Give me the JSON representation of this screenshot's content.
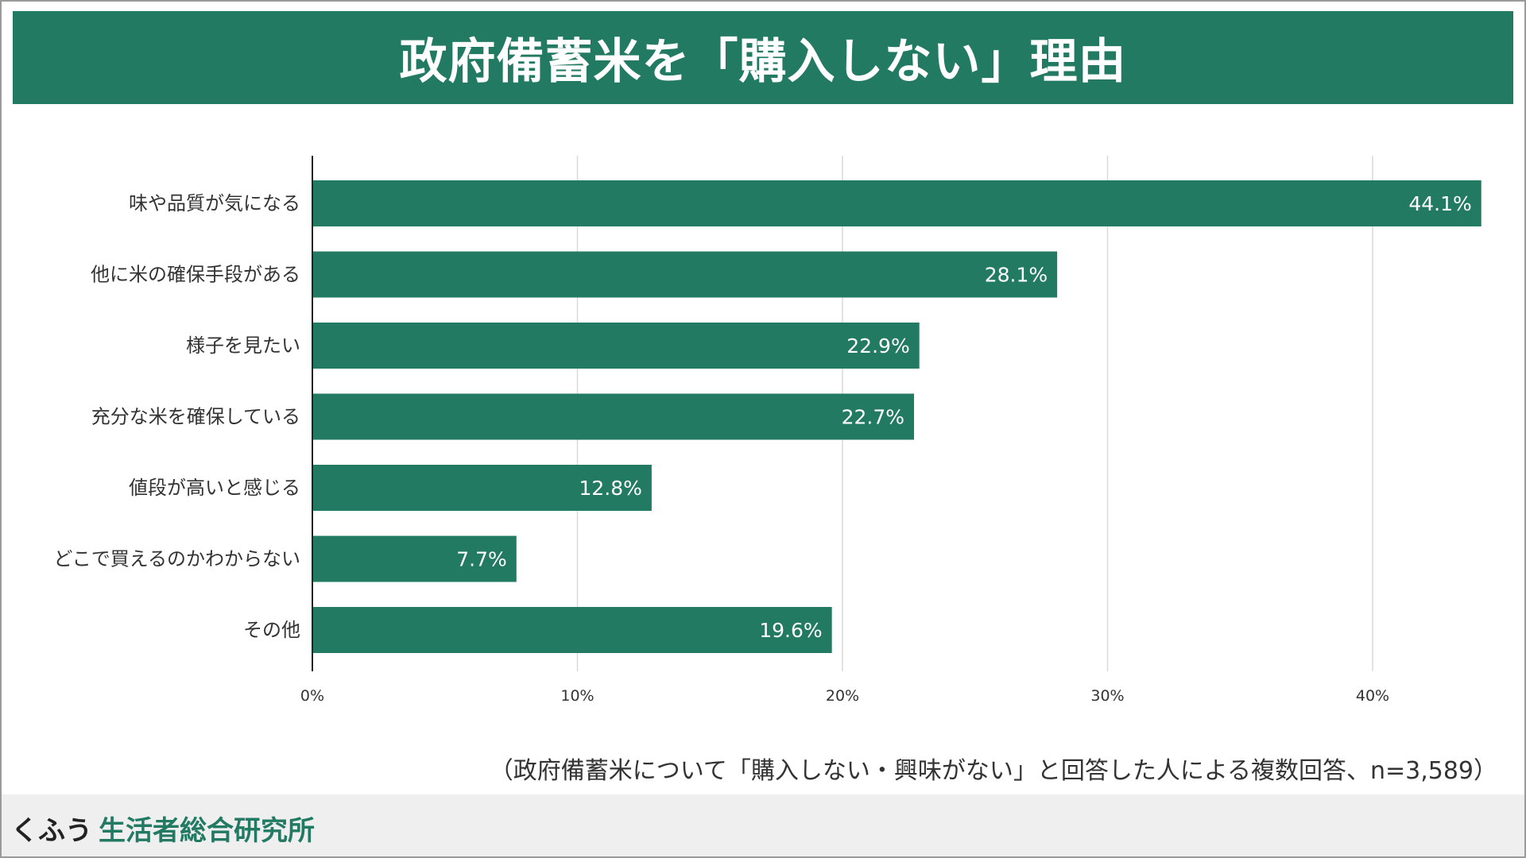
{
  "title": "政府備蓄米を「購入しない」理由",
  "note": "（政府備蓄米について「購入しない・興味がない」と回答した人による複数回答、n=3,589）",
  "brand": {
    "prefix": "くふう",
    "name": "生活者総合研究所"
  },
  "colors": {
    "bar": "#237a63",
    "title_bg": "#237a63",
    "grid": "#d9d9d9",
    "label": "#333333"
  },
  "chart_data": {
    "type": "bar",
    "orientation": "horizontal",
    "title": "政府備蓄米を「購入しない」理由",
    "categories": [
      "味や品質が気になる",
      "他に米の確保手段がある",
      "様子を見たい",
      "充分な米を確保している",
      "値段が高いと感じる",
      "どこで買えるのかわからない",
      "その他"
    ],
    "values": [
      44.1,
      28.1,
      22.9,
      22.7,
      12.8,
      7.7,
      19.6
    ],
    "value_labels": [
      "44.1%",
      "28.1%",
      "22.9%",
      "22.7%",
      "12.8%",
      "7.7%",
      "19.6%"
    ],
    "xlim": [
      0,
      45
    ],
    "xticks": [
      0,
      10,
      20,
      30,
      40
    ],
    "xtick_labels": [
      "0%",
      "10%",
      "20%",
      "30%",
      "40%"
    ],
    "xlabel": "",
    "ylabel": "",
    "grid": true
  }
}
